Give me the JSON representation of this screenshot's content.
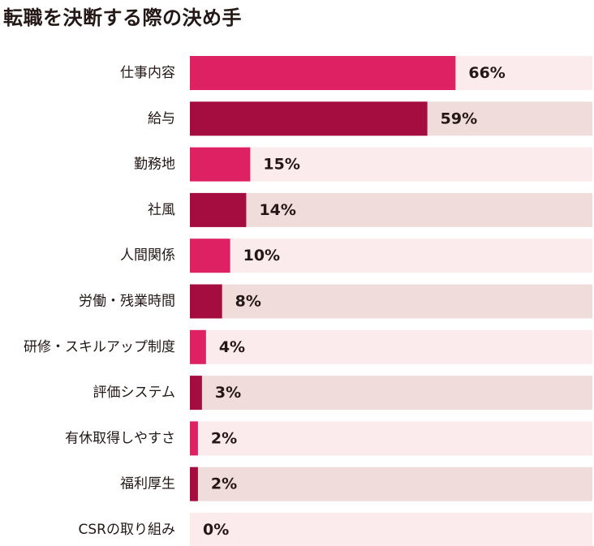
{
  "title": "転職を決断する際の決め手",
  "chart_data": {
    "type": "bar",
    "orientation": "horizontal",
    "title": "転職を決断する際の決め手",
    "categories": [
      "仕事内容",
      "給与",
      "勤務地",
      "社風",
      "人間関係",
      "労働・残業時間",
      "研修・スキルアップ制度",
      "評価システム",
      "有休取得しやすさ",
      "福利厚生",
      "CSRの取り組み"
    ],
    "values": [
      66,
      59,
      15,
      14,
      10,
      8,
      4,
      3,
      2,
      2,
      0
    ],
    "labels": [
      "66%",
      "59%",
      "15%",
      "14%",
      "10%",
      "8%",
      "4%",
      "3%",
      "2%",
      "2%",
      "0%"
    ],
    "unit": "%",
    "xlim": [
      0,
      100
    ],
    "grid": false,
    "legend": "none"
  },
  "colors": {
    "bar_odd": "#de2163",
    "bar_even": "#a50d40",
    "track_odd": "#fcebed",
    "track_even": "#f1dcdc",
    "text": "#231815"
  }
}
